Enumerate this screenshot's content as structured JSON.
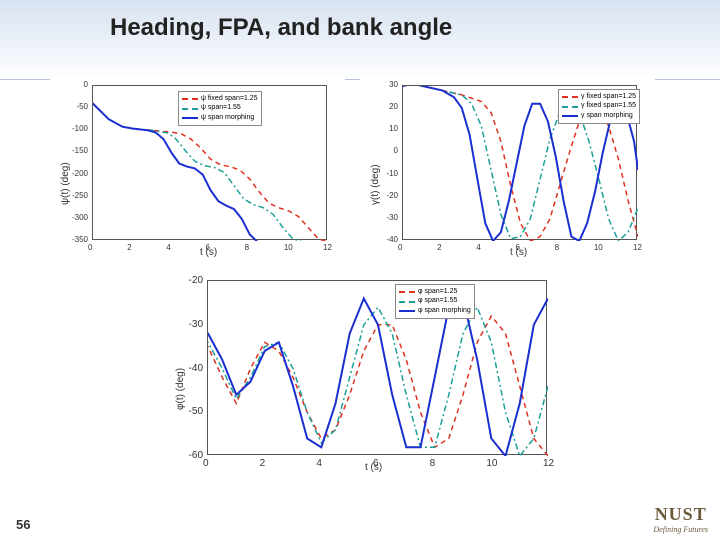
{
  "slide": {
    "number": "56",
    "title": "Heading, FPA, and bank angle",
    "background": "#ffffff",
    "header_gradient_top": "#d8e2f0",
    "header_gradient_bot": "#ffffff"
  },
  "logo": {
    "word": "NUST",
    "tagline": "Defining Futures",
    "color": "#6a5a3a"
  },
  "series_colors": {
    "fixed125": "#e03020",
    "fixed155": "#1aa098",
    "morphing": "#1a2fd0"
  },
  "series_styles": {
    "fixed125": "dash",
    "fixed155": "dashdot",
    "morphing": "solid"
  },
  "chart_heading": {
    "type": "line",
    "title": "",
    "xlabel": "t (s)",
    "ylabel": "ψ(t) (deg)",
    "xlim": [
      0,
      12
    ],
    "xtick_step": 2,
    "ylim": [
      -350,
      0
    ],
    "ytick_step": 50,
    "legend": [
      {
        "key": "fixed125",
        "label": "ψ fixed span=1.25"
      },
      {
        "key": "fixed155",
        "label": "ψ span=1.55"
      },
      {
        "key": "morphing",
        "label": "ψ span morphing"
      }
    ],
    "series": {
      "fixed125": [
        [
          -1,
          -30
        ],
        [
          0,
          -40
        ],
        [
          0.8,
          -75
        ],
        [
          1.5,
          -92
        ],
        [
          2,
          -96
        ],
        [
          3,
          -100
        ],
        [
          4,
          -104
        ],
        [
          4.5,
          -108
        ],
        [
          5,
          -120
        ],
        [
          5.5,
          -140
        ],
        [
          6,
          -165
        ],
        [
          6.5,
          -178
        ],
        [
          7,
          -182
        ],
        [
          7.5,
          -190
        ],
        [
          8,
          -210
        ],
        [
          8.5,
          -240
        ],
        [
          9,
          -265
        ],
        [
          9.5,
          -275
        ],
        [
          10,
          -282
        ],
        [
          10.5,
          -295
        ],
        [
          11,
          -320
        ],
        [
          11.5,
          -345
        ],
        [
          12,
          -352
        ]
      ],
      "fixed155": [
        [
          -1,
          -30
        ],
        [
          0,
          -40
        ],
        [
          0.8,
          -75
        ],
        [
          1.5,
          -92
        ],
        [
          2,
          -96
        ],
        [
          3,
          -100
        ],
        [
          3.8,
          -106
        ],
        [
          4.2,
          -118
        ],
        [
          4.7,
          -145
        ],
        [
          5.2,
          -170
        ],
        [
          5.7,
          -180
        ],
        [
          6.2,
          -184
        ],
        [
          6.7,
          -195
        ],
        [
          7.2,
          -225
        ],
        [
          7.7,
          -255
        ],
        [
          8.2,
          -268
        ],
        [
          8.7,
          -275
        ],
        [
          9.2,
          -290
        ],
        [
          9.7,
          -320
        ],
        [
          10.2,
          -345
        ],
        [
          10.7,
          -352
        ]
      ],
      "morphing": [
        [
          -1,
          -30
        ],
        [
          0,
          -40
        ],
        [
          0.8,
          -75
        ],
        [
          1.5,
          -92
        ],
        [
          2,
          -96
        ],
        [
          2.8,
          -100
        ],
        [
          3.2,
          -105
        ],
        [
          3.6,
          -120
        ],
        [
          4.0,
          -150
        ],
        [
          4.4,
          -175
        ],
        [
          4.8,
          -182
        ],
        [
          5.2,
          -186
        ],
        [
          5.6,
          -200
        ],
        [
          6.0,
          -235
        ],
        [
          6.4,
          -260
        ],
        [
          6.8,
          -270
        ],
        [
          7.2,
          -278
        ],
        [
          7.6,
          -300
        ],
        [
          8.0,
          -335
        ],
        [
          8.4,
          -352
        ]
      ]
    }
  },
  "chart_fpa": {
    "type": "line",
    "xlabel": "t (s)",
    "ylabel": "γ(t) (deg)",
    "xlim": [
      0,
      12
    ],
    "xtick_step": 2,
    "ylim": [
      -40,
      30
    ],
    "ytick_step": 10,
    "legend": [
      {
        "key": "fixed125",
        "label": "γ fixed span=1.25"
      },
      {
        "key": "fixed155",
        "label": "γ fixed span=1.55"
      },
      {
        "key": "morphing",
        "label": "γ span morphing"
      }
    ],
    "series": {
      "fixed125": [
        [
          -1,
          25
        ],
        [
          0,
          30
        ],
        [
          0.5,
          31
        ],
        [
          1,
          30
        ],
        [
          2,
          28
        ],
        [
          3,
          26
        ],
        [
          4,
          23
        ],
        [
          4.5,
          18
        ],
        [
          5,
          5
        ],
        [
          5.5,
          -15
        ],
        [
          6,
          -32
        ],
        [
          6.5,
          -40
        ],
        [
          7,
          -38
        ],
        [
          7.5,
          -30
        ],
        [
          8,
          -15
        ],
        [
          8.5,
          0
        ],
        [
          9,
          14
        ],
        [
          9.5,
          22
        ],
        [
          10,
          20
        ],
        [
          10.5,
          12
        ],
        [
          11,
          -3
        ],
        [
          11.5,
          -22
        ],
        [
          12,
          -38
        ]
      ],
      "fixed155": [
        [
          -1,
          25
        ],
        [
          0,
          30
        ],
        [
          0.5,
          31
        ],
        [
          1,
          30
        ],
        [
          2,
          28
        ],
        [
          3,
          26
        ],
        [
          3.5,
          22
        ],
        [
          4,
          12
        ],
        [
          4.5,
          -8
        ],
        [
          5,
          -28
        ],
        [
          5.5,
          -39
        ],
        [
          6,
          -38
        ],
        [
          6.5,
          -30
        ],
        [
          7,
          -12
        ],
        [
          7.5,
          6
        ],
        [
          8,
          18
        ],
        [
          8.5,
          23
        ],
        [
          9,
          18
        ],
        [
          9.5,
          5
        ],
        [
          10,
          -12
        ],
        [
          10.5,
          -30
        ],
        [
          11,
          -40
        ],
        [
          11.5,
          -36
        ],
        [
          12,
          -25
        ]
      ],
      "morphing": [
        [
          -1,
          25
        ],
        [
          0,
          30
        ],
        [
          0.5,
          31
        ],
        [
          1,
          30
        ],
        [
          2,
          28
        ],
        [
          2.6,
          25
        ],
        [
          3,
          20
        ],
        [
          3.4,
          8
        ],
        [
          3.8,
          -12
        ],
        [
          4.2,
          -32
        ],
        [
          4.6,
          -40
        ],
        [
          5,
          -36
        ],
        [
          5.4,
          -22
        ],
        [
          5.8,
          -5
        ],
        [
          6.2,
          12
        ],
        [
          6.6,
          22
        ],
        [
          7,
          22
        ],
        [
          7.4,
          14
        ],
        [
          7.8,
          -2
        ],
        [
          8.2,
          -22
        ],
        [
          8.6,
          -38
        ],
        [
          9,
          -40
        ],
        [
          9.4,
          -32
        ],
        [
          9.8,
          -18
        ],
        [
          10.2,
          0
        ],
        [
          10.6,
          15
        ],
        [
          11,
          22
        ],
        [
          11.4,
          18
        ],
        [
          11.8,
          5
        ],
        [
          12,
          -8
        ]
      ]
    }
  },
  "chart_bank": {
    "type": "line",
    "xlabel": "t (s)",
    "ylabel": "φ(t) (deg)",
    "xlim": [
      0,
      12
    ],
    "xtick_step": 2,
    "ylim": [
      -60,
      -20
    ],
    "ytick_step": 10,
    "legend": [
      {
        "key": "fixed125",
        "label": "φ span=1.25"
      },
      {
        "key": "fixed155",
        "label": "φ span=1.55"
      },
      {
        "key": "morphing",
        "label": "φ span morphing"
      }
    ],
    "series": {
      "fixed125": [
        [
          -1,
          -32
        ],
        [
          0,
          -35
        ],
        [
          0.5,
          -42
        ],
        [
          1,
          -48
        ],
        [
          1.5,
          -40
        ],
        [
          2,
          -34
        ],
        [
          2.5,
          -36
        ],
        [
          3,
          -42
        ],
        [
          3.5,
          -50
        ],
        [
          4,
          -56
        ],
        [
          4.5,
          -54
        ],
        [
          5,
          -46
        ],
        [
          5.5,
          -36
        ],
        [
          6,
          -30
        ],
        [
          6.5,
          -30
        ],
        [
          7,
          -38
        ],
        [
          7.5,
          -50
        ],
        [
          8,
          -58
        ],
        [
          8.5,
          -56
        ],
        [
          9,
          -46
        ],
        [
          9.5,
          -34
        ],
        [
          10,
          -28
        ],
        [
          10.5,
          -32
        ],
        [
          11,
          -44
        ],
        [
          11.5,
          -56
        ],
        [
          12,
          -60
        ]
      ],
      "fixed155": [
        [
          -1,
          -30
        ],
        [
          0,
          -34
        ],
        [
          0.5,
          -40
        ],
        [
          1,
          -47
        ],
        [
          1.5,
          -42
        ],
        [
          2,
          -35
        ],
        [
          2.5,
          -34
        ],
        [
          3,
          -40
        ],
        [
          3.5,
          -50
        ],
        [
          4,
          -57
        ],
        [
          4.5,
          -54
        ],
        [
          5,
          -42
        ],
        [
          5.5,
          -30
        ],
        [
          6,
          -26
        ],
        [
          6.5,
          -32
        ],
        [
          7,
          -46
        ],
        [
          7.5,
          -58
        ],
        [
          8,
          -58
        ],
        [
          8.5,
          -46
        ],
        [
          9,
          -32
        ],
        [
          9.5,
          -26
        ],
        [
          10,
          -34
        ],
        [
          10.5,
          -50
        ],
        [
          11,
          -60
        ],
        [
          11.5,
          -56
        ],
        [
          12,
          -44
        ]
      ],
      "morphing": [
        [
          -1,
          -28
        ],
        [
          0,
          -32
        ],
        [
          0.5,
          -38
        ],
        [
          1,
          -46
        ],
        [
          1.5,
          -43
        ],
        [
          2,
          -36
        ],
        [
          2.5,
          -34
        ],
        [
          3,
          -44
        ],
        [
          3.5,
          -56
        ],
        [
          4,
          -58
        ],
        [
          4.5,
          -48
        ],
        [
          5,
          -32
        ],
        [
          5.5,
          -24
        ],
        [
          6,
          -30
        ],
        [
          6.5,
          -46
        ],
        [
          7,
          -58
        ],
        [
          7.5,
          -58
        ],
        [
          8,
          -42
        ],
        [
          8.5,
          -26
        ],
        [
          9,
          -24
        ],
        [
          9.5,
          -38
        ],
        [
          10,
          -56
        ],
        [
          10.5,
          -60
        ],
        [
          11,
          -48
        ],
        [
          11.5,
          -30
        ],
        [
          12,
          -24
        ]
      ]
    }
  }
}
